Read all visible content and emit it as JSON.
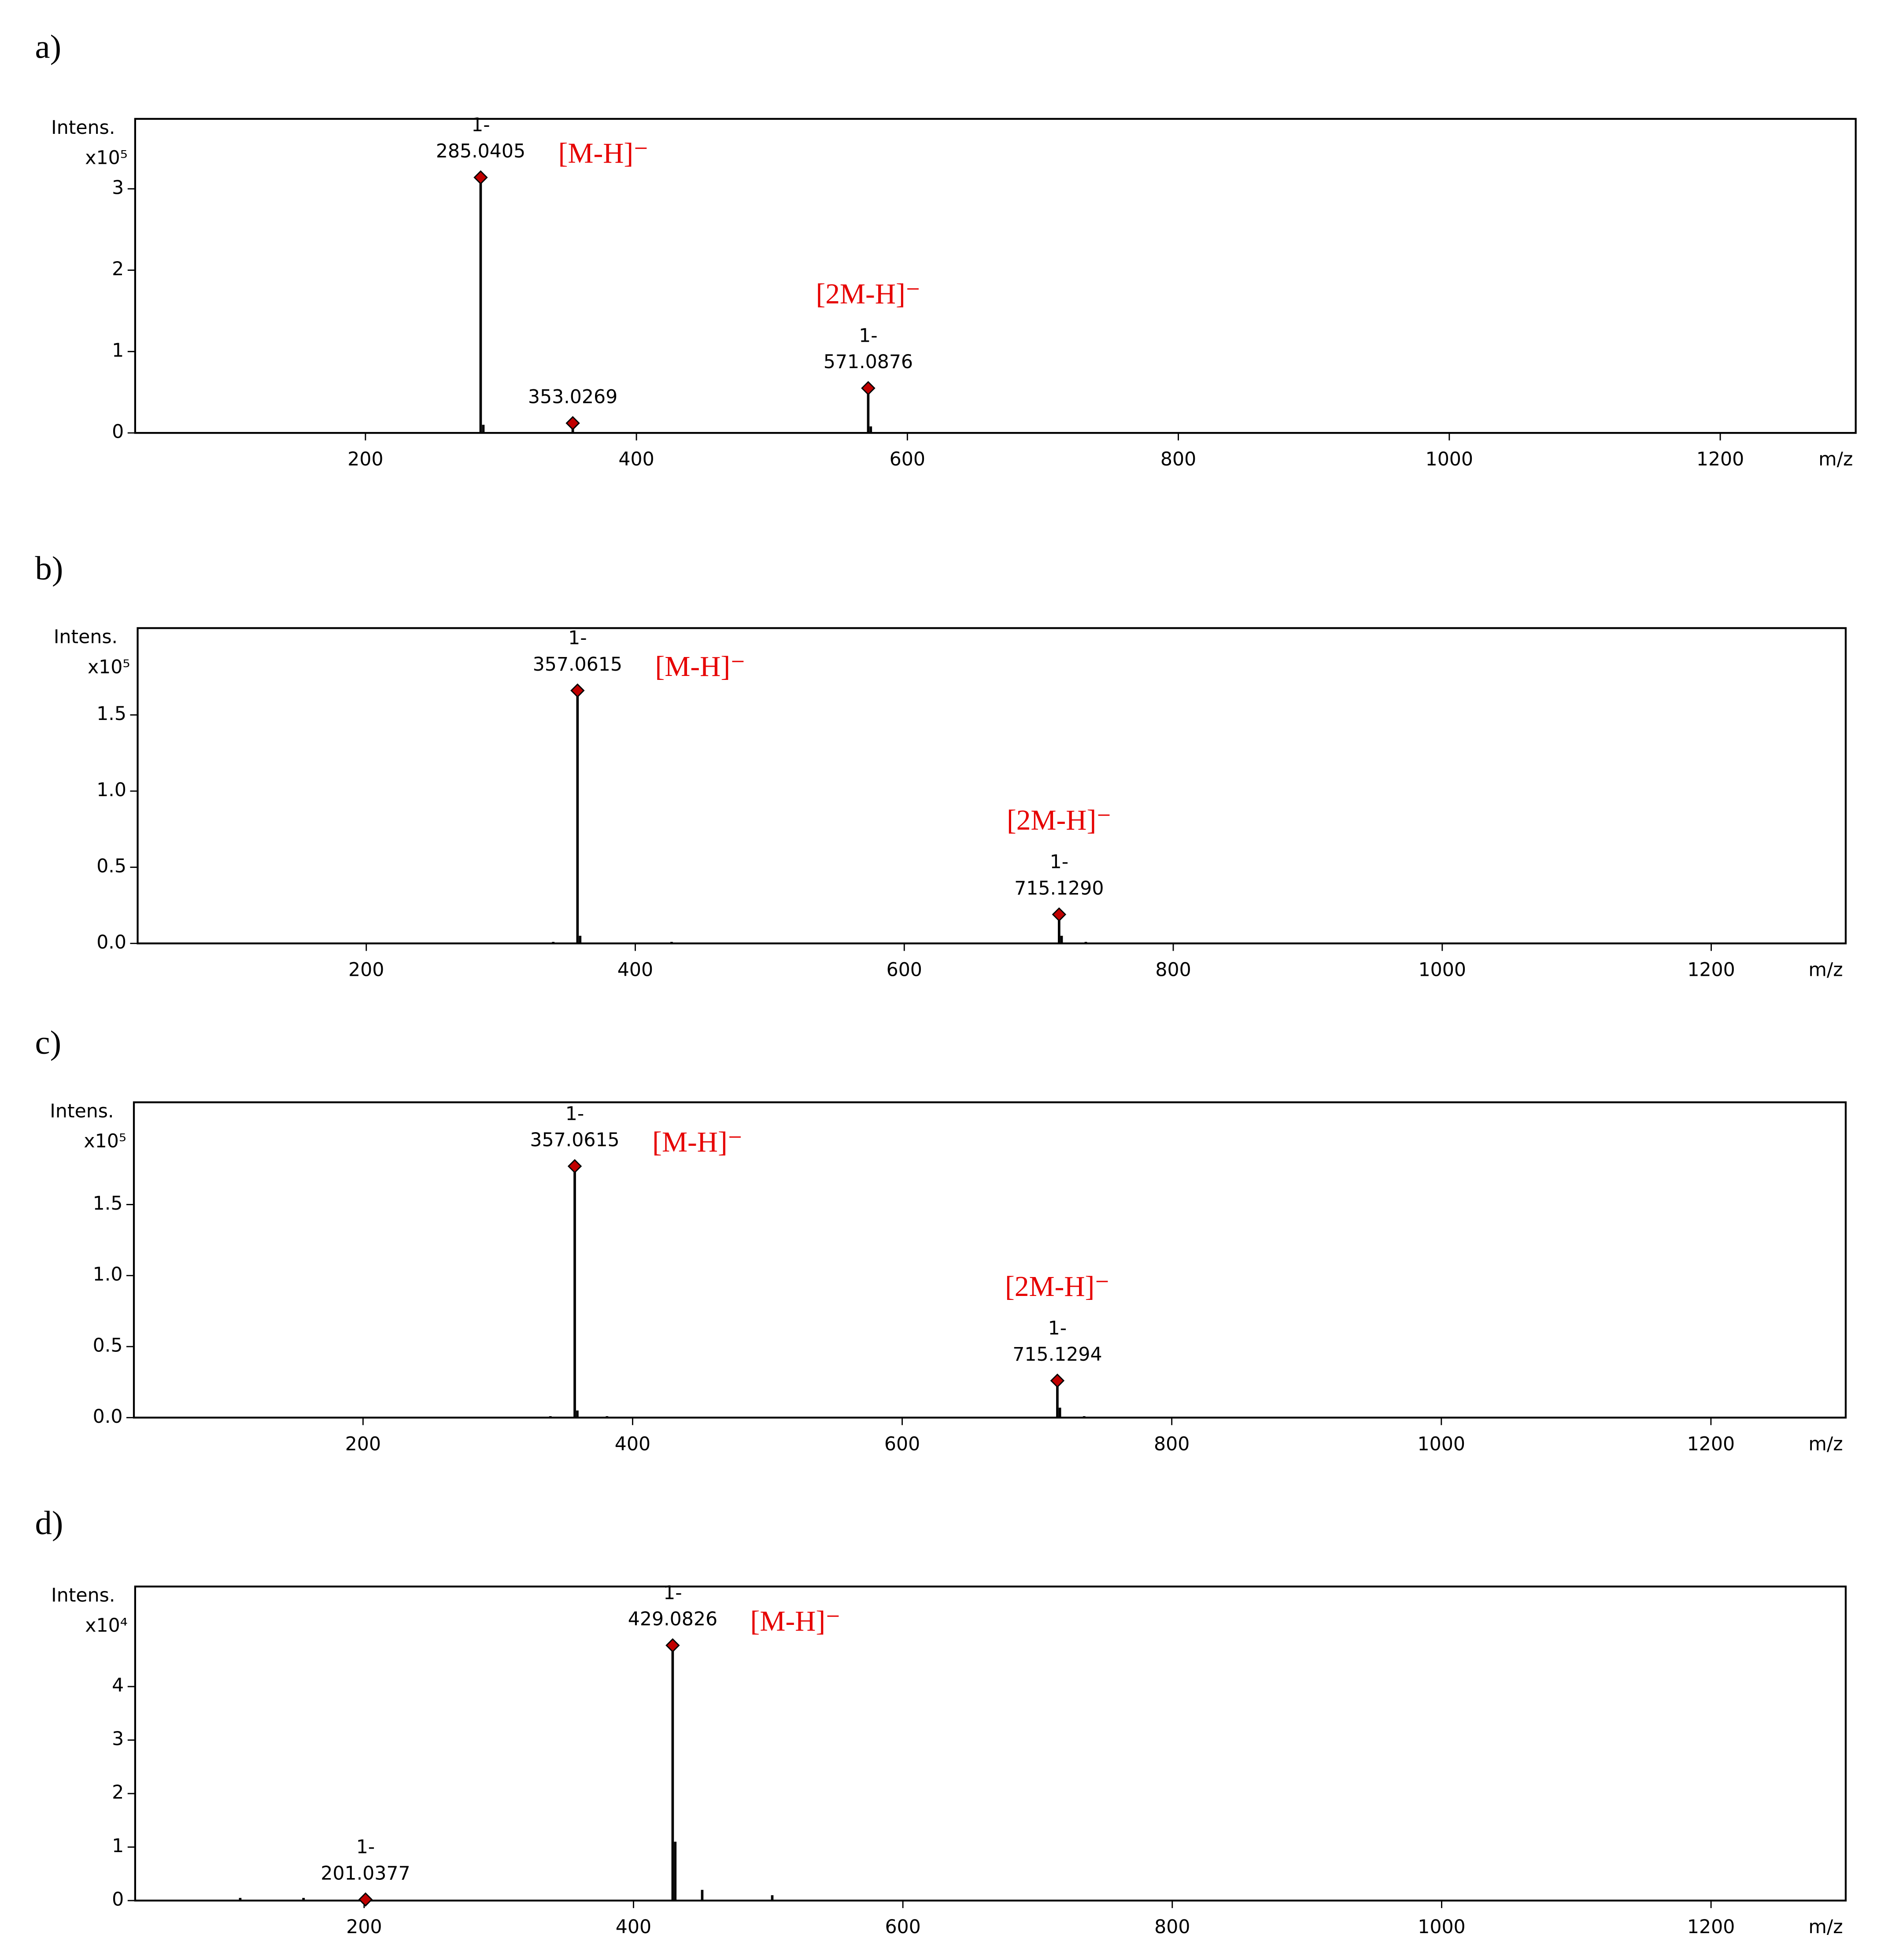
{
  "chart_data": [
    {
      "type": "stem",
      "panel": "a)",
      "ylabel": "Intens.",
      "yscale": "x10⁵",
      "xlabel": "m/z",
      "xlim": [
        30,
        1300
      ],
      "xticks": [
        200,
        400,
        600,
        800,
        1000,
        1200
      ],
      "ylim": [
        0,
        3.86
      ],
      "yticks": [
        0,
        1,
        2,
        3
      ],
      "line_color": "#000000",
      "marker_color": "#c00000",
      "peaks": {
        "x": [
          285.0405,
          353.0269,
          571.0876
        ],
        "x_labels": [
          "285.0405",
          "353.0269",
          "571.0876"
        ],
        "values": [
          3.14,
          0.12,
          0.55
        ],
        "charges": [
          "1-",
          null,
          "1-"
        ],
        "ions": [
          "[M-H]⁻",
          null,
          "[2M-H]⁻"
        ]
      },
      "minor": {
        "x": [
          287,
          573
        ],
        "values": [
          0.1,
          0.08
        ]
      }
    },
    {
      "type": "stem",
      "panel": "b)",
      "ylabel": "Intens.",
      "yscale": "x10⁵",
      "xlabel": "m/z",
      "xlim": [
        30,
        1300
      ],
      "xticks": [
        200,
        400,
        600,
        800,
        1000,
        1200
      ],
      "ylim": [
        0,
        2.07
      ],
      "yticks": [
        {
          "value": 0,
          "label": "0.0"
        },
        {
          "value": 0.5,
          "label": "0.5"
        },
        {
          "value": 1,
          "label": "1.0"
        },
        {
          "value": 1.5,
          "label": "1.5"
        }
      ],
      "line_color": "#000000",
      "marker_color": "#c00000",
      "peaks": {
        "x": [
          357.0615,
          715.129
        ],
        "x_labels": [
          "357.0615",
          "715.1290"
        ],
        "values": [
          1.66,
          0.19
        ],
        "charges": [
          "1-",
          "1-"
        ],
        "ions": [
          "[M-H]⁻",
          "[2M-H]⁻"
        ]
      },
      "minor": {
        "x": [
          359,
          339,
          427,
          717,
          735
        ],
        "values": [
          0.05,
          0.01,
          0.01,
          0.05,
          0.01
        ]
      }
    },
    {
      "type": "stem",
      "panel": "c)",
      "ylabel": "Intens.",
      "yscale": "x10⁵",
      "xlabel": "m/z",
      "xlim": [
        30,
        1300
      ],
      "xticks": [
        200,
        400,
        600,
        800,
        1000,
        1200
      ],
      "ylim": [
        0,
        2.22
      ],
      "yticks": [
        {
          "value": 0,
          "label": "0.0"
        },
        {
          "value": 0.5,
          "label": "0.5"
        },
        {
          "value": 1,
          "label": "1.0"
        },
        {
          "value": 1.5,
          "label": "1.5"
        }
      ],
      "line_color": "#000000",
      "marker_color": "#c00000",
      "peaks": {
        "x": [
          357.0615,
          715.1294
        ],
        "x_labels": [
          "357.0615",
          "715.1294"
        ],
        "values": [
          1.77,
          0.26
        ],
        "charges": [
          "1-",
          "1-"
        ],
        "ions": [
          "[M-H]⁻",
          "[2M-H]⁻"
        ]
      },
      "minor": {
        "x": [
          359,
          339,
          381,
          717,
          735
        ],
        "values": [
          0.05,
          0.01,
          0.01,
          0.07,
          0.01
        ]
      }
    },
    {
      "type": "stem",
      "panel": "d)",
      "ylabel": "Intens.",
      "yscale": "x10⁴",
      "xlabel": "m/z",
      "xlim": [
        30,
        1300
      ],
      "xticks": [
        200,
        400,
        600,
        800,
        1000,
        1200
      ],
      "ylim": [
        0,
        5.87
      ],
      "yticks": [
        0,
        1,
        2,
        3,
        4
      ],
      "line_color": "#000000",
      "marker_color": "#c00000",
      "peaks": {
        "x": [
          201.0377,
          429.0826
        ],
        "x_labels": [
          "201.0377",
          "429.0826"
        ],
        "values": [
          0.02,
          4.77
        ],
        "charges": [
          "1-",
          "1-"
        ],
        "ions": [
          null,
          "[M-H]⁻"
        ]
      },
      "minor": {
        "x": [
          431,
          451,
          503,
          155,
          108
        ],
        "values": [
          1.1,
          0.2,
          0.1,
          0.05,
          0.05
        ]
      }
    }
  ]
}
